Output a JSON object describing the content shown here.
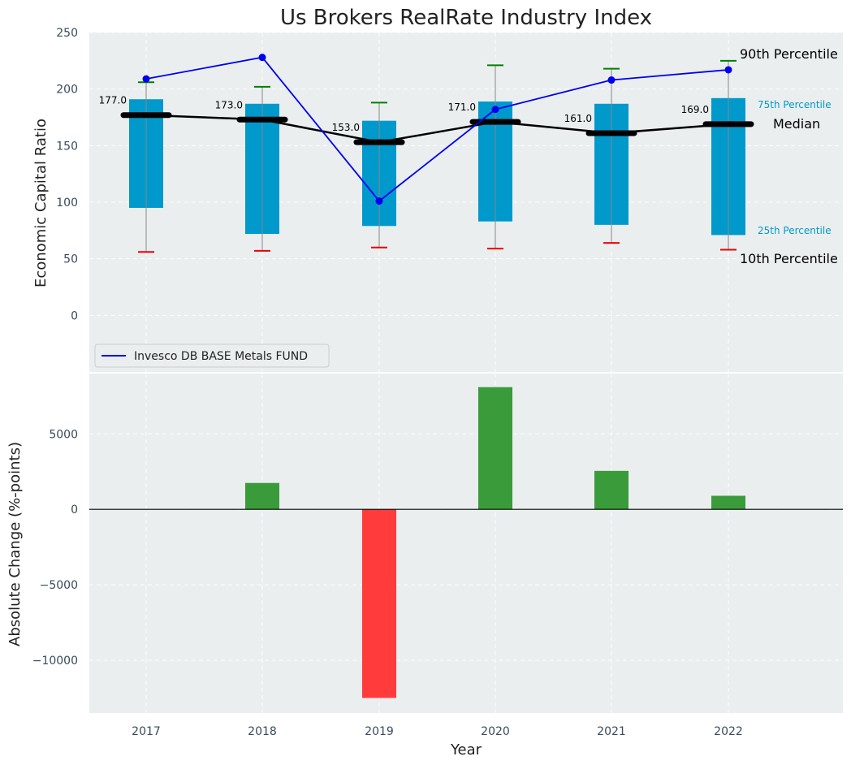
{
  "chart_data": [
    {
      "type": "box-summary-with-line",
      "title": "Us Brokers RealRate Industry Index",
      "xlabel": "",
      "ylabel": "Economic Capital Ratio",
      "ylim": [
        -50,
        250
      ],
      "yticks": [
        0,
        50,
        100,
        150,
        200,
        250
      ],
      "categories": [
        "2017",
        "2018",
        "2019",
        "2020",
        "2021",
        "2022"
      ],
      "p10": [
        56,
        57,
        60,
        59,
        64,
        58
      ],
      "p25": [
        95,
        72,
        79,
        83,
        80,
        71
      ],
      "median": [
        177,
        173,
        153,
        171,
        161,
        169
      ],
      "median_labels": [
        "177.0",
        "173.0",
        "153.0",
        "171.0",
        "161.0",
        "169.0"
      ],
      "p75": [
        191,
        187,
        172,
        189,
        187,
        192
      ],
      "p90": [
        206,
        202,
        188,
        221,
        218,
        225
      ],
      "series": [
        {
          "name": "Invesco DB BASE Metals FUND",
          "values": [
            209,
            228,
            101,
            182,
            208,
            217
          ],
          "color": "#0000ee"
        }
      ],
      "annotations": {
        "p90": "90th Percentile",
        "p75": "75th Percentile",
        "median": "Median",
        "p25": "25th Percentile",
        "p10": "10th Percentile"
      },
      "legend": "lower-left",
      "colors": {
        "box": "#0099cc",
        "p90_cap": "#008000",
        "p10_cap": "#ee0000",
        "median_line": "#000000"
      }
    },
    {
      "type": "bar",
      "title": "",
      "xlabel": "Year",
      "ylabel": "Absolute Change (%-points)",
      "ylim": [
        -13500,
        9000
      ],
      "yticks": [
        -10000,
        -5000,
        0,
        5000
      ],
      "ytick_labels": [
        "−10000",
        "−5000",
        "0",
        "5000"
      ],
      "categories": [
        "2017",
        "2018",
        "2019",
        "2020",
        "2021",
        "2022"
      ],
      "values": [
        0,
        1750,
        -12500,
        8100,
        2550,
        900
      ],
      "colors": {
        "positive": "#3a9b3a",
        "negative": "#ff3b3b"
      }
    }
  ]
}
